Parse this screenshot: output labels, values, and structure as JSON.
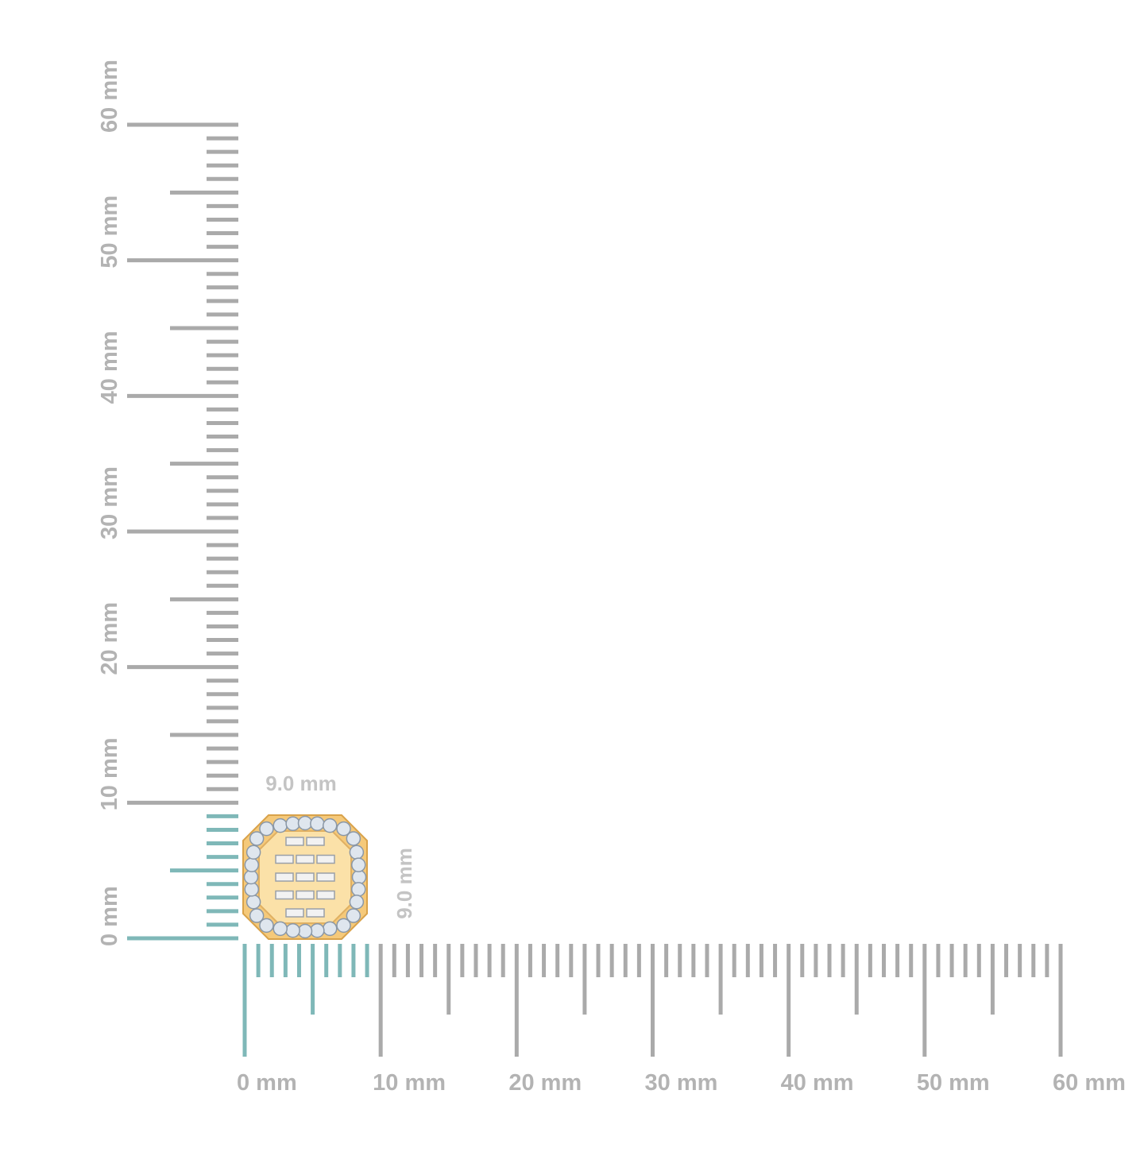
{
  "rulers": {
    "x_labels": [
      "0 mm",
      "10 mm",
      "20 mm",
      "30 mm",
      "40 mm",
      "50 mm",
      "60 mm"
    ],
    "y_labels": [
      "0 mm",
      "10 mm",
      "20 mm",
      "30 mm",
      "40 mm",
      "50 mm",
      "60 mm"
    ]
  },
  "dimensions": {
    "width": "9.0 mm",
    "height": "9.0 mm"
  }
}
